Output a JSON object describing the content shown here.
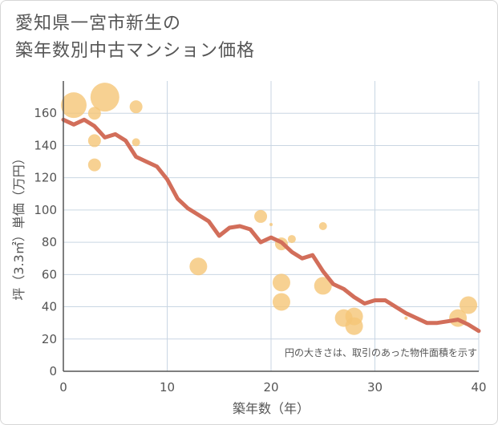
{
  "title": {
    "line1": "愛知県一宮市新生の",
    "line2": "築年数別中古マンション価格"
  },
  "note": "円の大きさは、取引のあった物件面積を示す",
  "colors": {
    "line": "#d26e5a",
    "bubble": "#f5c577",
    "grid": "#c9d6e3",
    "axis": "#555555"
  },
  "chart_data": {
    "type": "scatter",
    "xlabel": "築年数（年）",
    "ylabel": "坪（3.3㎡）単価（万円）",
    "xlim": [
      0,
      40
    ],
    "ylim": [
      0,
      180
    ],
    "xticks": [
      0,
      10,
      20,
      30,
      40
    ],
    "yticks": [
      0,
      20,
      40,
      60,
      80,
      100,
      120,
      140,
      160
    ],
    "grid": true,
    "trend_line": {
      "x": [
        0,
        1,
        2,
        3,
        4,
        5,
        6,
        7,
        8,
        9,
        10,
        11,
        12,
        13,
        14,
        15,
        16,
        17,
        18,
        19,
        20,
        21,
        22,
        23,
        24,
        25,
        26,
        27,
        28,
        29,
        30,
        31,
        32,
        33,
        34,
        35,
        36,
        37,
        38,
        39,
        40
      ],
      "y": [
        156,
        153,
        156,
        152,
        145,
        147,
        143,
        133,
        130,
        127,
        119,
        107,
        101,
        97,
        93,
        84,
        89,
        90,
        88,
        80,
        83,
        80,
        74,
        70,
        72,
        62,
        54,
        51,
        46,
        42,
        44,
        44,
        40,
        36,
        33,
        30,
        30,
        31,
        32,
        29,
        25
      ]
    },
    "bubbles": {
      "x": [
        1,
        4,
        3,
        7,
        3,
        7,
        3,
        13,
        19,
        20,
        21,
        22,
        25,
        21,
        21,
        25,
        27,
        28,
        28,
        33,
        38,
        39
      ],
      "y": [
        165,
        170,
        160,
        164,
        143,
        142,
        128,
        65,
        96,
        91,
        79,
        82,
        90,
        55,
        43,
        53,
        33,
        34,
        28,
        33,
        33,
        41
      ],
      "size": [
        16,
        18,
        8,
        8,
        8,
        5,
        8,
        11,
        8,
        2,
        8,
        5,
        5,
        11,
        11,
        11,
        11,
        11,
        11,
        2,
        11,
        11
      ]
    }
  }
}
